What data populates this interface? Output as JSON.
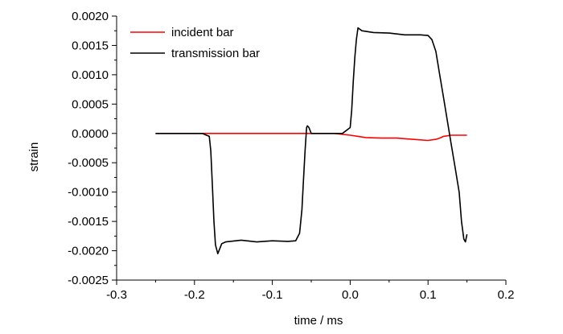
{
  "chart_data": {
    "type": "line",
    "title": "",
    "xlabel": "time / ms",
    "ylabel": "strain",
    "xlim": [
      -0.3,
      0.2
    ],
    "ylim": [
      -0.0025,
      0.002
    ],
    "xticks": [
      -0.3,
      -0.2,
      -0.1,
      0.0,
      0.1,
      0.2
    ],
    "xtick_labels": [
      "-0.3",
      "-0.2",
      "-0.1",
      "0.0",
      "0.1",
      "0.2"
    ],
    "yticks": [
      0.002,
      0.0015,
      0.001,
      0.0005,
      0.0,
      -0.0005,
      -0.001,
      -0.0015,
      -0.002,
      -0.0025
    ],
    "ytick_labels": [
      "0.0020",
      "0.0015",
      "0.0010",
      "0.0005",
      "0.0000",
      "-0.0005",
      "-0.0010",
      "-0.0015",
      "-0.0020",
      "-0.0025"
    ],
    "grid": false,
    "legend_position": "top-left",
    "series": [
      {
        "name": "incident bar",
        "color": "#ff0000",
        "x": [
          -0.25,
          -0.2,
          -0.15,
          -0.1,
          -0.05,
          -0.02,
          0.0,
          0.01,
          0.02,
          0.04,
          0.06,
          0.08,
          0.1,
          0.11,
          0.115,
          0.12,
          0.13,
          0.15
        ],
        "y": [
          0.0,
          0.0,
          0.0,
          0.0,
          0.0,
          0.0,
          -3e-05,
          -5e-05,
          -7e-05,
          -8e-05,
          -8e-05,
          -0.0001,
          -0.00012,
          -0.0001,
          -8e-05,
          -5e-05,
          -3e-05,
          -3e-05
        ]
      },
      {
        "name": "transmission bar",
        "color": "#000000",
        "x": [
          -0.25,
          -0.2,
          -0.19,
          -0.181,
          -0.179,
          -0.177,
          -0.175,
          -0.173,
          -0.17,
          -0.165,
          -0.16,
          -0.14,
          -0.12,
          -0.1,
          -0.08,
          -0.07,
          -0.065,
          -0.062,
          -0.06,
          -0.058,
          -0.056,
          -0.055,
          -0.053,
          -0.05,
          -0.045,
          -0.03,
          -0.01,
          0.0,
          0.002,
          0.004,
          0.006,
          0.008,
          0.01,
          0.015,
          0.03,
          0.05,
          0.07,
          0.09,
          0.1,
          0.105,
          0.11,
          0.115,
          0.12,
          0.125,
          0.13,
          0.135,
          0.14,
          0.143,
          0.146,
          0.148,
          0.15
        ],
        "y": [
          0.0,
          0.0,
          0.0,
          -5e-05,
          -0.0003,
          -0.0009,
          -0.0015,
          -0.0019,
          -0.00205,
          -0.00188,
          -0.00185,
          -0.00182,
          -0.00185,
          -0.00183,
          -0.00184,
          -0.00183,
          -0.0017,
          -0.0013,
          -0.0008,
          -0.0003,
          0.0001,
          0.00013,
          0.0001,
          0.0,
          0.0,
          0.0,
          0.0,
          0.0001,
          0.0004,
          0.0009,
          0.0013,
          0.0016,
          0.0018,
          0.00175,
          0.00172,
          0.00171,
          0.00168,
          0.00168,
          0.00167,
          0.0016,
          0.0014,
          0.001,
          0.0006,
          0.0002,
          -0.0002,
          -0.0006,
          -0.001,
          -0.0015,
          -0.0018,
          -0.00185,
          -0.00172
        ]
      }
    ]
  }
}
